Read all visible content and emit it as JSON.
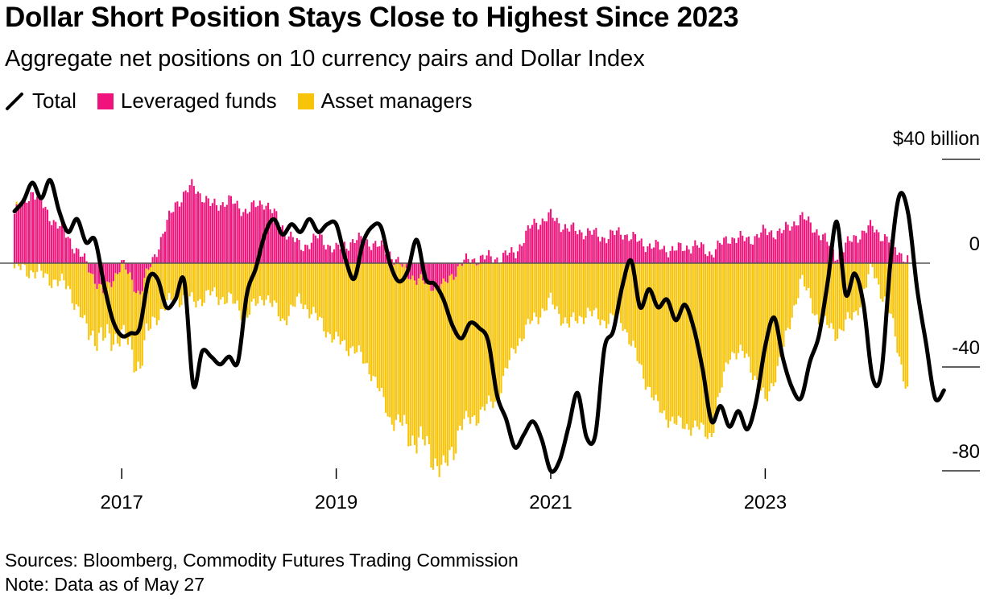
{
  "header": {
    "title": "Dollar Short Position Stays Close to Highest Since 2023",
    "subtitle": "Aggregate net positions on 10 currency pairs and Dollar Index"
  },
  "legend": {
    "total": "Total",
    "leveraged": "Leveraged funds",
    "asset": "Asset managers"
  },
  "colors": {
    "total": "#000000",
    "leveraged": "#f0137c",
    "asset": "#f7c40a"
  },
  "footer": {
    "sources": "Sources: Bloomberg, Commodity Futures Trading Commission",
    "note": "Note: Data as of May 27"
  },
  "chart_data": {
    "type": "bar",
    "stacked": true,
    "y_axis": {
      "ticks": [
        40,
        0,
        -40,
        -80
      ],
      "tick_labels": [
        "$40 billion",
        "0",
        "-40",
        "-80"
      ],
      "ylim": [
        -87,
        40
      ],
      "position": "right"
    },
    "x_axis": {
      "tick_labels": [
        "2017",
        "2019",
        "2021",
        "2023"
      ],
      "xlim": [
        "2016-01",
        "2024-05"
      ]
    },
    "series": [
      {
        "name": "Leveraged funds",
        "type": "bar",
        "points": [
          [
            "2016-01",
            19
          ],
          [
            "2016-03",
            28
          ],
          [
            "2016-05",
            18
          ],
          [
            "2016-07",
            10
          ],
          [
            "2016-09",
            0
          ],
          [
            "2016-11",
            -12
          ],
          [
            "2017-01",
            0
          ],
          [
            "2017-03",
            -12
          ],
          [
            "2017-05",
            6
          ],
          [
            "2017-07",
            23
          ],
          [
            "2017-09",
            30
          ],
          [
            "2017-11",
            22
          ],
          [
            "2018-01",
            24
          ],
          [
            "2018-03",
            20
          ],
          [
            "2018-05",
            24
          ],
          [
            "2018-07",
            14
          ],
          [
            "2018-09",
            6
          ],
          [
            "2018-11",
            10
          ],
          [
            "2019-01",
            5
          ],
          [
            "2019-03",
            9
          ],
          [
            "2019-05",
            8
          ],
          [
            "2019-07",
            4
          ],
          [
            "2019-09",
            -4
          ],
          [
            "2019-11",
            -8
          ],
          [
            "2020-01",
            -9
          ],
          [
            "2020-03",
            0
          ],
          [
            "2020-05",
            2
          ],
          [
            "2020-07",
            2
          ],
          [
            "2020-09",
            4
          ],
          [
            "2020-11",
            15
          ],
          [
            "2021-01",
            18
          ],
          [
            "2021-03",
            13
          ],
          [
            "2021-05",
            12
          ],
          [
            "2021-07",
            10
          ],
          [
            "2021-09",
            12
          ],
          [
            "2021-11",
            8
          ],
          [
            "2022-01",
            6
          ],
          [
            "2022-03",
            5
          ],
          [
            "2022-05",
            7
          ],
          [
            "2022-07",
            4
          ],
          [
            "2022-09",
            10
          ],
          [
            "2022-11",
            9
          ],
          [
            "2023-01",
            12
          ],
          [
            "2023-03",
            12
          ],
          [
            "2023-05",
            18
          ],
          [
            "2023-07",
            12
          ],
          [
            "2023-09",
            3
          ],
          [
            "2023-11",
            10
          ],
          [
            "2024-01",
            14
          ],
          [
            "2024-03",
            8
          ],
          [
            "2024-05",
            1
          ]
        ]
      },
      {
        "name": "Asset managers",
        "type": "bar",
        "points": [
          [
            "2016-01",
            -2
          ],
          [
            "2016-03",
            -3
          ],
          [
            "2016-05",
            -6
          ],
          [
            "2016-07",
            -9
          ],
          [
            "2016-09",
            -25
          ],
          [
            "2016-11",
            -18
          ],
          [
            "2017-01",
            -27
          ],
          [
            "2017-03",
            -28
          ],
          [
            "2017-05",
            -20
          ],
          [
            "2017-07",
            -13
          ],
          [
            "2017-09",
            -15
          ],
          [
            "2017-11",
            -12
          ],
          [
            "2018-01",
            -14
          ],
          [
            "2018-03",
            -20
          ],
          [
            "2018-05",
            -12
          ],
          [
            "2018-07",
            -22
          ],
          [
            "2018-09",
            -14
          ],
          [
            "2018-11",
            -22
          ],
          [
            "2019-01",
            -30
          ],
          [
            "2019-03",
            -33
          ],
          [
            "2019-05",
            -42
          ],
          [
            "2019-07",
            -60
          ],
          [
            "2019-09",
            -62
          ],
          [
            "2019-11",
            -62
          ],
          [
            "2020-01",
            -72
          ],
          [
            "2020-03",
            -62
          ],
          [
            "2020-05",
            -58
          ],
          [
            "2020-07",
            -52
          ],
          [
            "2020-09",
            -32
          ],
          [
            "2020-11",
            -22
          ],
          [
            "2021-01",
            -15
          ],
          [
            "2021-03",
            -24
          ],
          [
            "2021-05",
            -19
          ],
          [
            "2021-07",
            -22
          ],
          [
            "2021-09",
            -22
          ],
          [
            "2021-11",
            -40
          ],
          [
            "2022-01",
            -56
          ],
          [
            "2022-03",
            -62
          ],
          [
            "2022-05",
            -63
          ],
          [
            "2022-07",
            -66
          ],
          [
            "2022-09",
            -34
          ],
          [
            "2022-11",
            -36
          ],
          [
            "2023-01",
            -54
          ],
          [
            "2023-03",
            -34
          ],
          [
            "2023-05",
            -6
          ],
          [
            "2023-07",
            -22
          ],
          [
            "2023-09",
            -27
          ],
          [
            "2023-11",
            -20
          ],
          [
            "2024-01",
            -2
          ],
          [
            "2024-03",
            -20
          ],
          [
            "2024-05",
            -51
          ]
        ]
      },
      {
        "name": "Total",
        "type": "line",
        "points": [
          [
            "2016-01",
            20
          ],
          [
            "2016-02",
            24
          ],
          [
            "2016-03",
            31
          ],
          [
            "2016-04",
            25
          ],
          [
            "2016-05",
            32
          ],
          [
            "2016-06",
            20
          ],
          [
            "2016-07",
            12
          ],
          [
            "2016-08",
            17
          ],
          [
            "2016-09",
            8
          ],
          [
            "2016-10",
            9
          ],
          [
            "2016-11",
            -8
          ],
          [
            "2016-12",
            -22
          ],
          [
            "2017-01",
            -28
          ],
          [
            "2017-02",
            -27
          ],
          [
            "2017-03",
            -25
          ],
          [
            "2017-04",
            -6
          ],
          [
            "2017-05",
            -6
          ],
          [
            "2017-06",
            -17
          ],
          [
            "2017-07",
            -14
          ],
          [
            "2017-08",
            -7
          ],
          [
            "2017-09",
            -47
          ],
          [
            "2017-10",
            -34
          ],
          [
            "2017-11",
            -36
          ],
          [
            "2017-12",
            -39
          ],
          [
            "2018-01",
            -36
          ],
          [
            "2018-02",
            -38
          ],
          [
            "2018-03",
            -12
          ],
          [
            "2018-04",
            -2
          ],
          [
            "2018-05",
            11
          ],
          [
            "2018-06",
            17
          ],
          [
            "2018-07",
            11
          ],
          [
            "2018-08",
            15
          ],
          [
            "2018-09",
            12
          ],
          [
            "2018-10",
            17
          ],
          [
            "2018-11",
            12
          ],
          [
            "2018-12",
            15
          ],
          [
            "2019-01",
            15
          ],
          [
            "2019-02",
            2
          ],
          [
            "2019-03",
            -6
          ],
          [
            "2019-04",
            8
          ],
          [
            "2019-05",
            14
          ],
          [
            "2019-06",
            14
          ],
          [
            "2019-07",
            0
          ],
          [
            "2019-08",
            -7
          ],
          [
            "2019-09",
            -3
          ],
          [
            "2019-10",
            9
          ],
          [
            "2019-11",
            -6
          ],
          [
            "2019-12",
            -8
          ],
          [
            "2020-01",
            -14
          ],
          [
            "2020-02",
            -24
          ],
          [
            "2020-03",
            -29
          ],
          [
            "2020-04",
            -23
          ],
          [
            "2020-05",
            -25
          ],
          [
            "2020-06",
            -30
          ],
          [
            "2020-07",
            -51
          ],
          [
            "2020-08",
            -60
          ],
          [
            "2020-09",
            -71
          ],
          [
            "2020-10",
            -66
          ],
          [
            "2020-11",
            -61
          ],
          [
            "2020-12",
            -68
          ],
          [
            "2021-01",
            -80
          ],
          [
            "2021-02",
            -76
          ],
          [
            "2021-03",
            -63
          ],
          [
            "2021-04",
            -50
          ],
          [
            "2021-05",
            -67
          ],
          [
            "2021-06",
            -66
          ],
          [
            "2021-07",
            -33
          ],
          [
            "2021-08",
            -26
          ],
          [
            "2021-09",
            -9
          ],
          [
            "2021-10",
            1
          ],
          [
            "2021-11",
            -17
          ],
          [
            "2021-12",
            -10
          ],
          [
            "2022-01",
            -17
          ],
          [
            "2022-02",
            -14
          ],
          [
            "2022-03",
            -22
          ],
          [
            "2022-04",
            -16
          ],
          [
            "2022-05",
            -25
          ],
          [
            "2022-06",
            -41
          ],
          [
            "2022-07",
            -61
          ],
          [
            "2022-08",
            -55
          ],
          [
            "2022-09",
            -63
          ],
          [
            "2022-10",
            -57
          ],
          [
            "2022-11",
            -64
          ],
          [
            "2022-12",
            -53
          ],
          [
            "2023-01",
            -32
          ],
          [
            "2023-02",
            -21
          ],
          [
            "2023-03",
            -37
          ],
          [
            "2023-04",
            -48
          ],
          [
            "2023-05",
            -52
          ],
          [
            "2023-06",
            -38
          ],
          [
            "2023-07",
            -28
          ],
          [
            "2023-08",
            -7
          ],
          [
            "2023-09",
            16
          ],
          [
            "2023-10",
            -12
          ],
          [
            "2023-11",
            -4
          ],
          [
            "2023-12",
            -16
          ],
          [
            "2024-01",
            -44
          ],
          [
            "2024-02",
            -42
          ],
          [
            "2024-03",
            0
          ],
          [
            "2024-04",
            26
          ],
          [
            "2024-05",
            19
          ],
          [
            "2024-06",
            -10
          ],
          [
            "2024-07",
            -31
          ],
          [
            "2024-08",
            -52
          ],
          [
            "2024-09",
            -49
          ]
        ]
      }
    ]
  }
}
